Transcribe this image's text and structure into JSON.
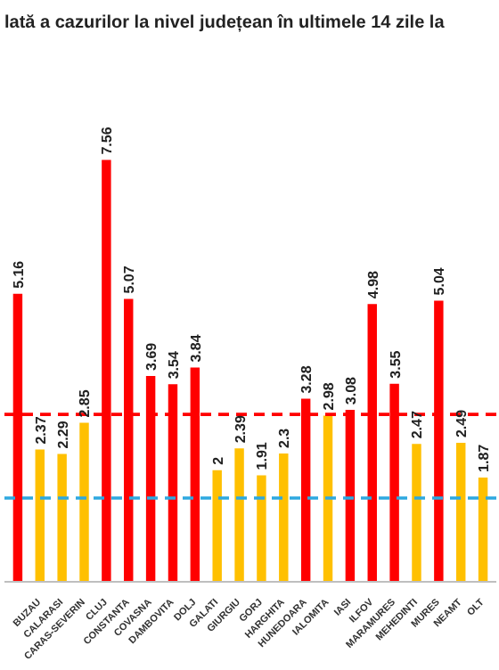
{
  "chart_data": {
    "type": "bar",
    "title": "lată a cazurilor la nivel județean în ultimele 14 zile la",
    "categories": [
      null,
      "BUZAU",
      "CALARASI",
      "CARAS-SEVERIN",
      "CLUJ",
      "CONSTANTA",
      "COVASNA",
      "DAMBOVITA",
      "DOLJ",
      "GALATI",
      "GIURGIU",
      "GORJ",
      "HARGHITA",
      "HUNEDOARA",
      "IALOMITA",
      "IASI",
      "ILFOV",
      "MARAMURES",
      "MEHEDINTI",
      "MURES",
      "NEAMT",
      "OLT"
    ],
    "values": [
      5.16,
      2.37,
      2.29,
      2.85,
      7.56,
      5.07,
      3.69,
      3.54,
      3.84,
      2,
      2.39,
      1.91,
      2.3,
      3.28,
      2.98,
      3.08,
      4.98,
      3.55,
      2.47,
      5.04,
      2.49,
      1.87
    ],
    "colors": [
      "#ff0000",
      "#ffc000",
      "#ffc000",
      "#ffc000",
      "#ff0000",
      "#ff0000",
      "#ff0000",
      "#ff0000",
      "#ff0000",
      "#ffc000",
      "#ffc000",
      "#ffc000",
      "#ffc000",
      "#ff0000",
      "#ffc000",
      "#ff0000",
      "#ff0000",
      "#ff0000",
      "#ffc000",
      "#ff0000",
      "#ffc000",
      "#ffc000"
    ],
    "data_labels": true,
    "ref_lines": [
      {
        "axis": "y",
        "value": 3,
        "color": "#ff0000",
        "line_style": "dashed"
      },
      {
        "axis": "y",
        "value": 1.5,
        "color": "#2ea8e0",
        "line_style": "dashed"
      }
    ]
  }
}
